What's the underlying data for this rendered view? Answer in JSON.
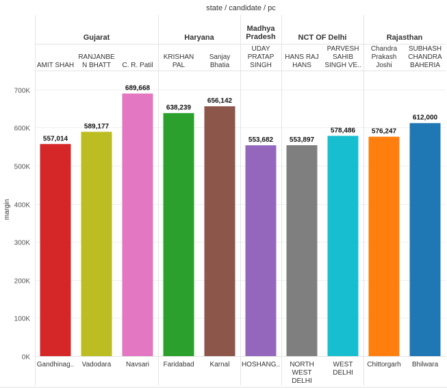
{
  "chart_data": {
    "type": "bar",
    "header_title": "state  /  candidate  /  pc",
    "ylabel": "margin",
    "ylim": [
      0,
      750000
    ],
    "yticks": [
      {
        "value": 0,
        "label": "0K"
      },
      {
        "value": 100000,
        "label": "100K"
      },
      {
        "value": 200000,
        "label": "200K"
      },
      {
        "value": 300000,
        "label": "300K"
      },
      {
        "value": 400000,
        "label": "400K"
      },
      {
        "value": 500000,
        "label": "500K"
      },
      {
        "value": 600000,
        "label": "600K"
      },
      {
        "value": 700000,
        "label": "700K"
      }
    ],
    "states": [
      {
        "name": [
          "Gujarat"
        ],
        "count": 3
      },
      {
        "name": [
          "Haryana"
        ],
        "count": 2
      },
      {
        "name": [
          "Madhya",
          "Pradesh"
        ],
        "count": 1
      },
      {
        "name": [
          "NCT OF Delhi"
        ],
        "count": 2
      },
      {
        "name": [
          "Rajasthan"
        ],
        "count": 2
      }
    ],
    "bars": [
      {
        "candidate": [
          "AMIT SHAH"
        ],
        "pc": [
          "Gandhinag.."
        ],
        "value": 557014,
        "label": "557,014",
        "color": "#d62728"
      },
      {
        "candidate": [
          "RANJANBE",
          "N BHATT"
        ],
        "pc": [
          "Vadodara"
        ],
        "value": 589177,
        "label": "589,177",
        "color": "#bcbd22"
      },
      {
        "candidate": [
          "C. R. Patil"
        ],
        "pc": [
          "Navsari"
        ],
        "value": 689668,
        "label": "689,668",
        "color": "#e377c2"
      },
      {
        "candidate": [
          "KRISHAN",
          "PAL"
        ],
        "pc": [
          "Faridabad"
        ],
        "value": 638239,
        "label": "638,239",
        "color": "#2ca02c"
      },
      {
        "candidate": [
          "Sanjay",
          "Bhatia"
        ],
        "pc": [
          "Karnal"
        ],
        "value": 656142,
        "label": "656,142",
        "color": "#8c564b"
      },
      {
        "candidate": [
          "UDAY",
          "PRATAP",
          "SINGH"
        ],
        "pc": [
          "HOSHANG.."
        ],
        "value": 553682,
        "label": "553,682",
        "color": "#9467bd"
      },
      {
        "candidate": [
          "HANS RAJ",
          "HANS"
        ],
        "pc": [
          "NORTH",
          "WEST",
          "DELHI"
        ],
        "value": 553897,
        "label": "553,897",
        "color": "#7f7f7f"
      },
      {
        "candidate": [
          "PARVESH",
          "SAHIB",
          "SINGH VE.."
        ],
        "pc": [
          "WEST",
          "DELHI"
        ],
        "value": 578486,
        "label": "578,486",
        "color": "#17becf"
      },
      {
        "candidate": [
          "Chandra",
          "Prakash",
          "Joshi"
        ],
        "pc": [
          "Chittorgarh"
        ],
        "value": 576247,
        "label": "576,247",
        "color": "#ff7f0e"
      },
      {
        "candidate": [
          "SUBHASH",
          "CHANDRA",
          "BAHERIA"
        ],
        "pc": [
          "Bhilwara"
        ],
        "value": 612000,
        "label": "612,000",
        "color": "#1f77b4"
      }
    ]
  }
}
